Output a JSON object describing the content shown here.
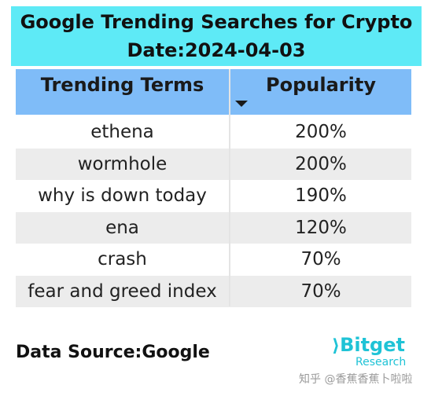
{
  "header": {
    "title": [
      "Google Trending Searches for Crypto",
      "Date:2024-04-03"
    ]
  },
  "table": {
    "columns": [
      "Trending Terms",
      "Popularity"
    ],
    "rows": [
      [
        "ethena",
        "200%"
      ],
      [
        "wormhole",
        "200%"
      ],
      [
        "why is down today",
        "190%"
      ],
      [
        "ena",
        "120%"
      ],
      [
        "crash",
        "70%"
      ],
      [
        "fear and greed index",
        "70%"
      ]
    ]
  },
  "footer": {
    "source": "Data Source:Google",
    "logo": "Bitget",
    "logo_sub": "Research",
    "watermark": "知乎 @香蕉香蕉卜啦啦"
  }
}
